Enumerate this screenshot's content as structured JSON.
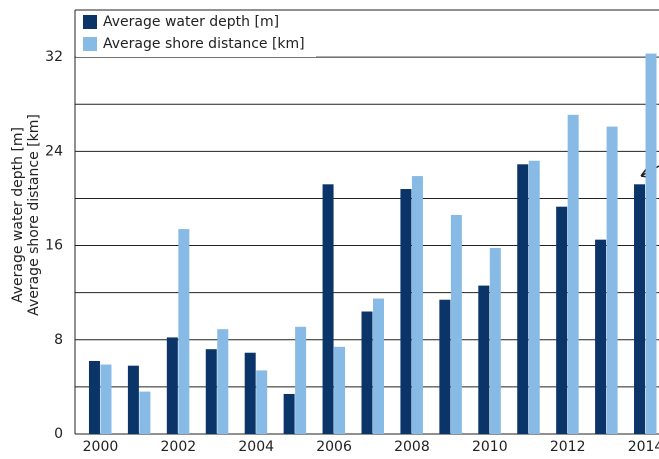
{
  "chart_data": {
    "type": "bar",
    "y_label": [
      "Average water depth [m]",
      "Average shore distance [km]"
    ],
    "categories": [
      "2000",
      null,
      "2002",
      null,
      "2004",
      null,
      "2006",
      null,
      "2008",
      null,
      "2010",
      null,
      "2012",
      null,
      "2014"
    ],
    "series": [
      {
        "name": "Average water depth [m]",
        "color": "#0b3468",
        "values": [
          6.2,
          5.8,
          8.2,
          7.2,
          6.9,
          3.4,
          21.2,
          10.4,
          20.8,
          11.4,
          12.6,
          22.9,
          19.3,
          16.5,
          21.2
        ]
      },
      {
        "name": "Average shore distance [km]",
        "color": "#87bbe6",
        "values": [
          5.9,
          3.6,
          17.4,
          8.9,
          5.4,
          9.1,
          7.4,
          11.5,
          21.9,
          18.6,
          15.8,
          23.2,
          27.1,
          26.1,
          32.3
        ]
      }
    ],
    "ylim": [
      0,
      36
    ],
    "yticks": [
      0,
      8,
      16,
      24,
      32
    ],
    "minor_yticks": [
      4,
      12,
      20,
      28
    ],
    "grid": true,
    "legend": "upper left"
  }
}
